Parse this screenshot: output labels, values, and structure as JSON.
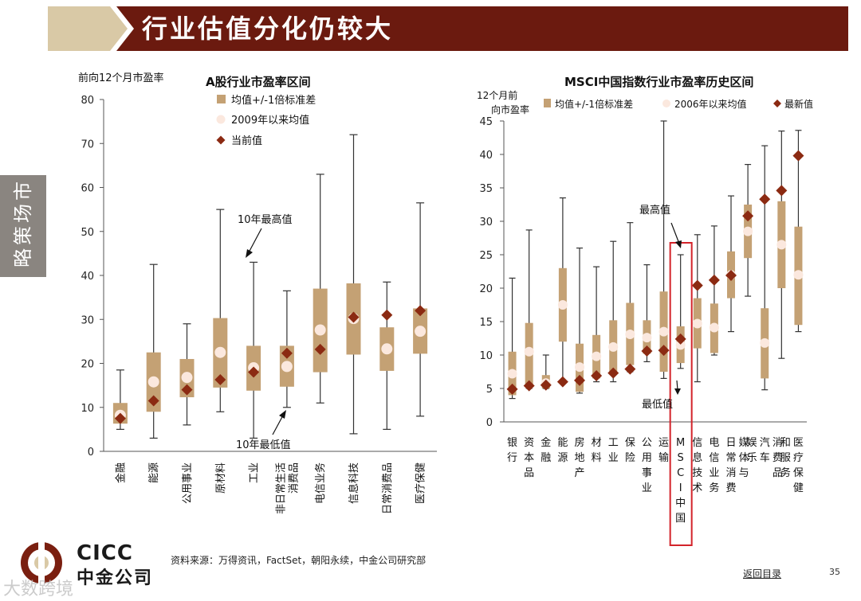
{
  "page": {
    "title": "行业估值分化仍较大",
    "side_tab": "市场策略",
    "source": "资料来源：万得资讯，FactSet，朝阳永续，中金公司研究部",
    "back_link": "返回目录",
    "page_number": "35",
    "logo_en": "CICC",
    "logo_cn": "中金公司",
    "watermark": "大数跨境"
  },
  "colors": {
    "title_bg": "#6b1a0f",
    "title_accent": "#d9c9a6",
    "box": "#c4a174",
    "mean_dot": "#fbe8de",
    "current": "#8b2a12",
    "highlight_frame": "#d3232a",
    "axis": "#555555"
  },
  "chart_data": [
    {
      "type": "box-range",
      "title": "A股行业市盈率区间",
      "ylabel": "前向12个月市盈率",
      "ylim": [
        0,
        80
      ],
      "yticks": [
        0,
        10,
        20,
        30,
        40,
        50,
        60,
        70,
        80
      ],
      "legend": [
        "均值+/-1倍标准差",
        "2009年以来均值",
        "当前值"
      ],
      "annotations": {
        "max": "10年最高值",
        "min": "10年最低值"
      },
      "categories": [
        "金融",
        "能源",
        "公用事业",
        "原材料",
        "工业",
        "非日常生活消费品",
        "电信业务",
        "信息科技",
        "日常消费品",
        "医疗保健"
      ],
      "category_lines": [
        [
          "金融"
        ],
        [
          "能源"
        ],
        [
          "公用事业"
        ],
        [
          "原材料"
        ],
        [
          "工业"
        ],
        [
          "非日常生活",
          "消费品"
        ],
        [
          "电信业务"
        ],
        [
          "信息科技"
        ],
        [
          "日常消费品"
        ],
        [
          "医疗保健"
        ]
      ],
      "max": [
        18.5,
        42.5,
        29,
        55,
        43,
        36.5,
        63,
        72,
        38.5,
        56.5
      ],
      "min": [
        5,
        3,
        6,
        9,
        3,
        10,
        11,
        4,
        5,
        8
      ],
      "band_high": [
        11,
        22.5,
        21,
        30.3,
        24,
        24,
        37,
        38.2,
        28.2,
        32.5
      ],
      "band_low": [
        6.3,
        9,
        12.3,
        14.5,
        13.8,
        14.7,
        18,
        22,
        18.3,
        22.2
      ],
      "mean": [
        8.2,
        15.8,
        16.8,
        22.5,
        19,
        19.3,
        27.6,
        30.2,
        23.3,
        27.3
      ],
      "current": [
        7.5,
        11.5,
        14,
        16.3,
        18,
        22.3,
        23.2,
        30.5,
        31,
        32
      ]
    },
    {
      "type": "box-range",
      "title": "MSCI中国指数行业市盈率历史区间",
      "ylabel": "12个月前向市盈率",
      "ylim": [
        0,
        45
      ],
      "yticks": [
        0,
        5,
        10,
        15,
        20,
        25,
        30,
        35,
        40,
        45
      ],
      "legend": [
        "均值+/-1倍标准差",
        "2006年以来均值",
        "最新值"
      ],
      "annotations": {
        "max": "最高值",
        "min": "最低值"
      },
      "categories": [
        "银行",
        "资本品",
        "金融",
        "能源",
        "房地产",
        "材料",
        "工业",
        "保险",
        "公用事业",
        "运输",
        "MSCI中国",
        "信息技术",
        "电信业务",
        "日常消费",
        "媒体与娱乐",
        "汽车",
        "消费品和服务",
        "医疗保健"
      ],
      "highlight_index": 10,
      "max": [
        21.5,
        28.7,
        10,
        33.5,
        26,
        23.2,
        27,
        29.8,
        23.5,
        45,
        25,
        28,
        29.3,
        33.8,
        38.5,
        41.3,
        43.5,
        43.6
      ],
      "min": [
        3.5,
        5,
        5,
        6,
        4.3,
        6,
        6,
        7.5,
        9,
        6.5,
        8,
        6,
        10,
        13.5,
        18.8,
        4.8,
        9.5,
        13.5
      ],
      "band_high": [
        10.5,
        14.8,
        7,
        23,
        11.7,
        13,
        15.2,
        17.8,
        15.2,
        19.5,
        14.3,
        18.5,
        17.7,
        25.5,
        32.5,
        17,
        33,
        29.2
      ],
      "band_low": [
        4,
        5.3,
        5,
        12,
        4.5,
        6.5,
        7.5,
        8.5,
        10.2,
        7.5,
        8.8,
        11,
        10.3,
        18.5,
        24.5,
        6.5,
        20,
        14.5
      ],
      "mean": [
        7.2,
        10.5,
        5.8,
        17.5,
        8.2,
        9.8,
        11.2,
        13.1,
        12.6,
        13.5,
        11.5,
        14.7,
        14.1,
        22,
        28.5,
        11.8,
        26.5,
        22
      ],
      "current": [
        4.9,
        5.4,
        5.5,
        6,
        6.2,
        6.9,
        7.3,
        7.9,
        10.6,
        10.7,
        12.4,
        20.4,
        21.2,
        21.9,
        30.8,
        33.3,
        34.6,
        39.8
      ]
    }
  ]
}
